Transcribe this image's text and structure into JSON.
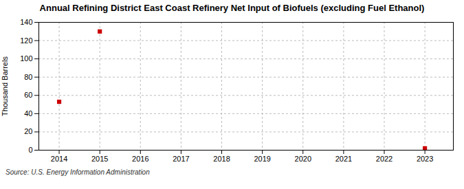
{
  "chart_data": {
    "type": "scatter",
    "title": "Annual Refining District East Coast Refinery Net Input of Biofuels (excluding Fuel Ethanol)",
    "ylabel": "Thousand Barrels",
    "caption": "Source: U.S. Energy Information Administration",
    "x": [
      2014,
      2015,
      2023
    ],
    "values": [
      53,
      130,
      2
    ],
    "xlim": [
      2013.5,
      2023.7
    ],
    "ylim": [
      0,
      140
    ],
    "xticks": [
      2014,
      2015,
      2016,
      2017,
      2018,
      2019,
      2020,
      2021,
      2022,
      2023
    ],
    "yticks": [
      0,
      20,
      40,
      60,
      80,
      100,
      120,
      140
    ],
    "color": "#cc0000",
    "marker": "square",
    "grid": true
  }
}
